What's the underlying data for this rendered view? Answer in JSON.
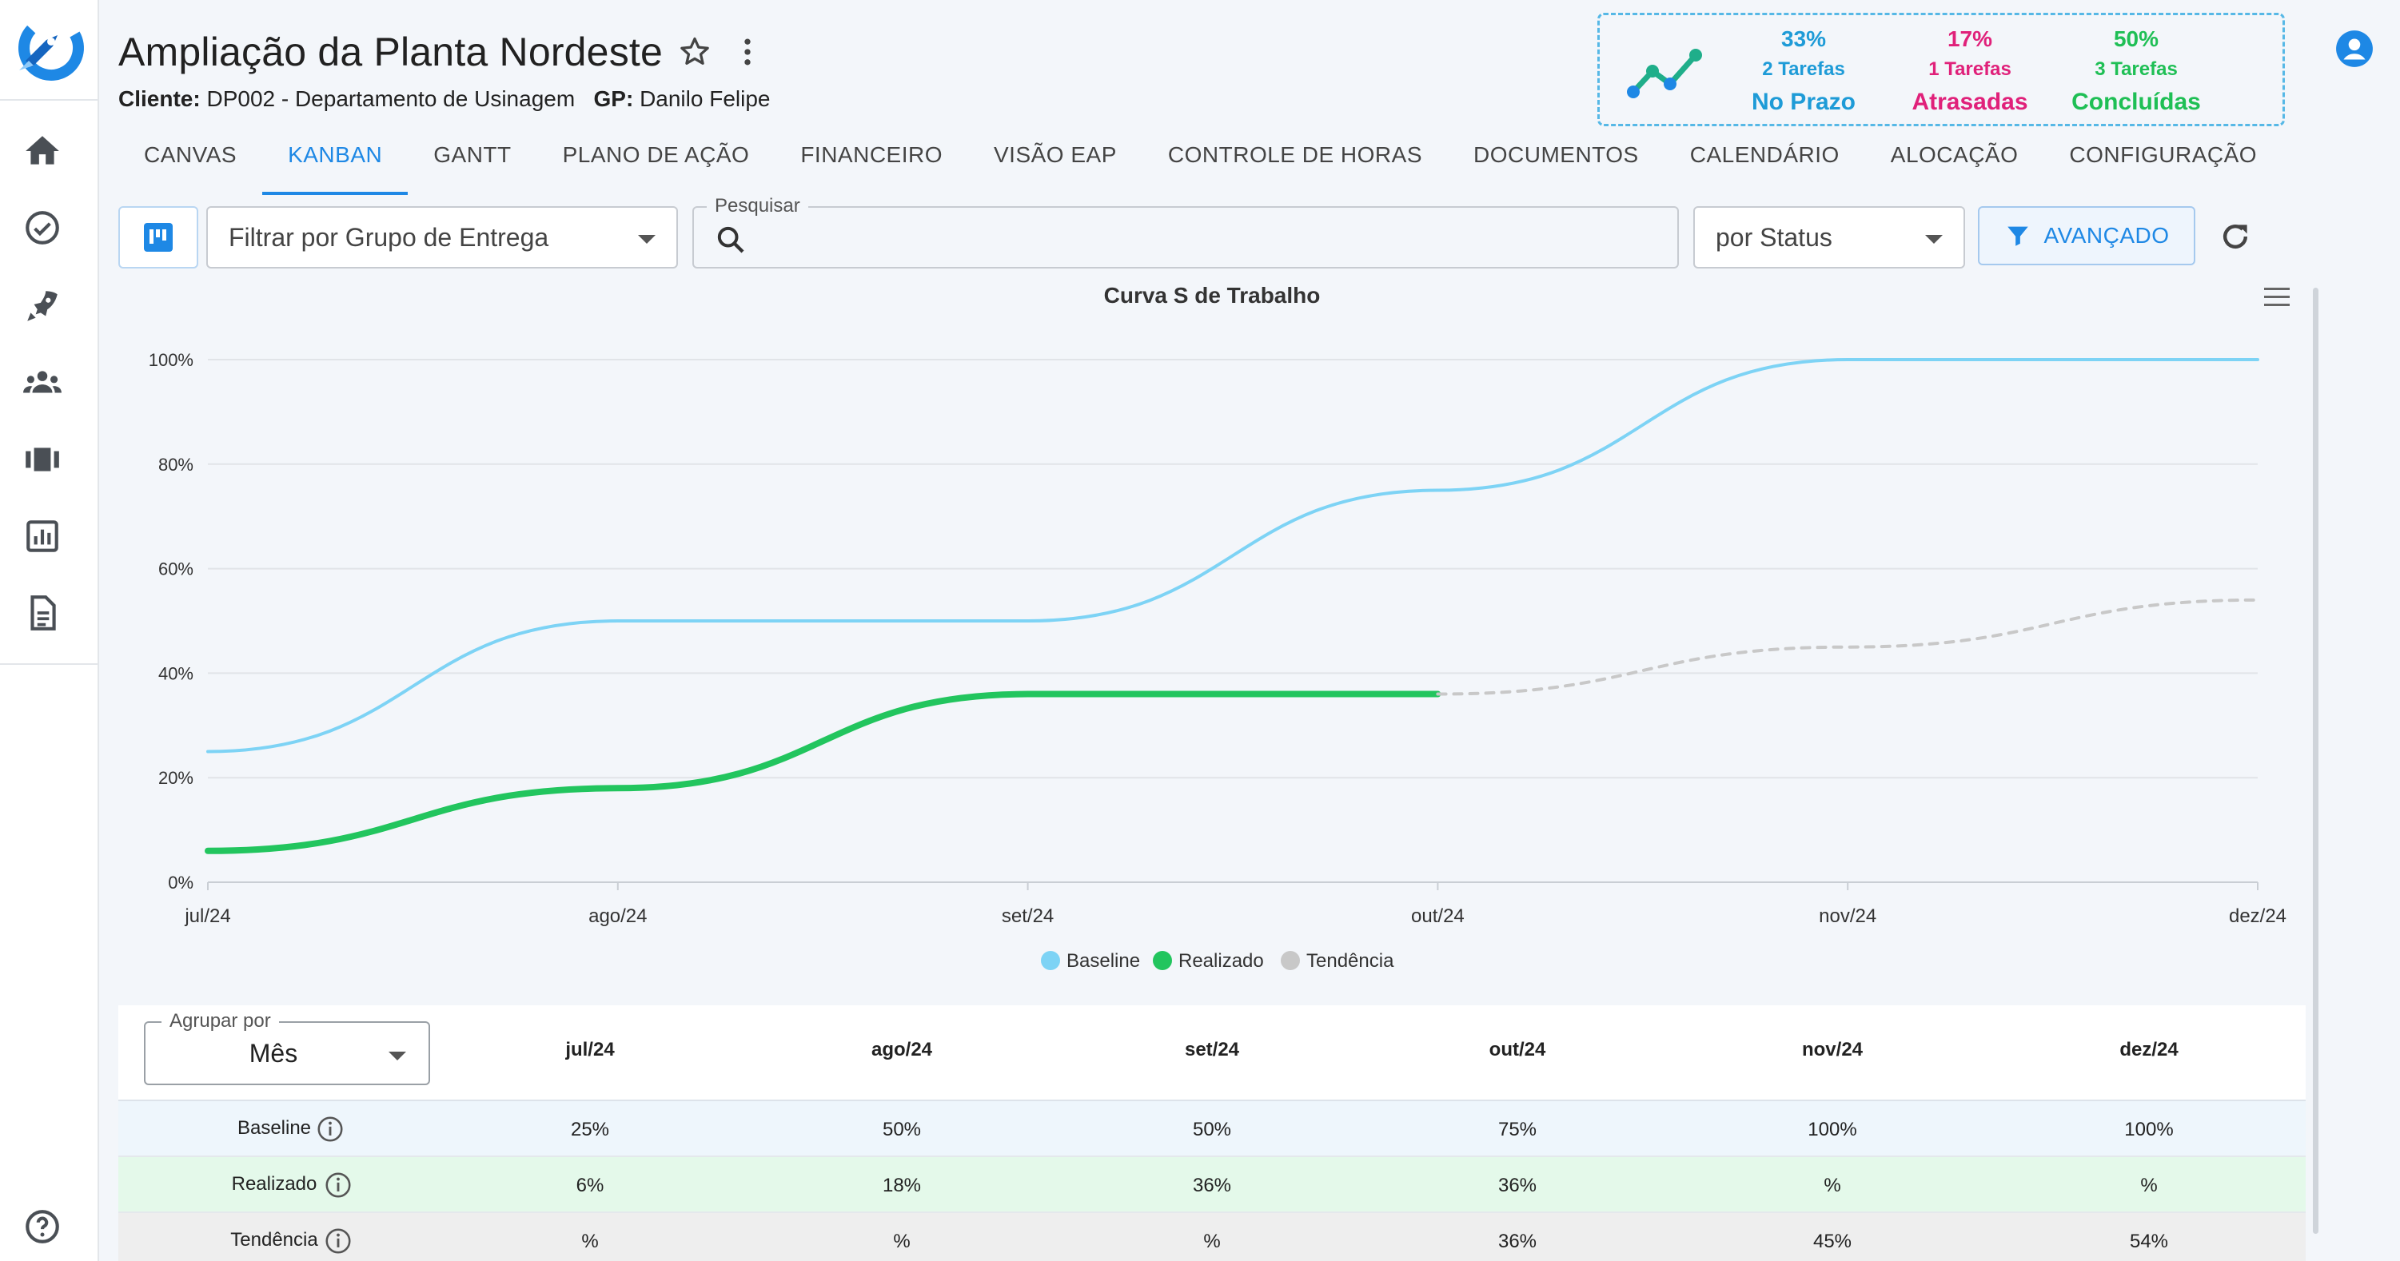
{
  "header": {
    "title": "Ampliação da Planta Nordeste",
    "client_label": "Cliente:",
    "client_value": "DP002 - Departamento de Usinagem",
    "gp_label": "GP:",
    "gp_value": "Danilo Felipe"
  },
  "stats": [
    {
      "pct": "33%",
      "count": "2 Tarefas",
      "label": "No Prazo",
      "color": "#1e9bd7"
    },
    {
      "pct": "17%",
      "count": "1 Tarefas",
      "label": "Atrasadas",
      "color": "#e0217a"
    },
    {
      "pct": "50%",
      "count": "3 Tarefas",
      "label": "Concluídas",
      "color": "#1fbf55"
    }
  ],
  "tabs": [
    "CANVAS",
    "KANBAN",
    "GANTT",
    "PLANO DE AÇÃO",
    "FINANCEIRO",
    "VISÃO EAP",
    "CONTROLE DE HORAS",
    "DOCUMENTOS",
    "CALENDÁRIO",
    "ALOCAÇÃO",
    "CONFIGURAÇÃO"
  ],
  "active_tab": "KANBAN",
  "filters": {
    "delivery_group": "Filtrar por Grupo de Entrega",
    "search_label": "Pesquisar",
    "search_value": "",
    "status": "por Status",
    "advanced": "AVANÇADO"
  },
  "sidebar_icons": [
    "home-icon",
    "check-circle-icon",
    "rocket-icon",
    "groups-icon",
    "carousel-icon",
    "report-icon",
    "document-icon",
    "help-icon"
  ],
  "chart_data": {
    "type": "line",
    "title": "Curva S de Trabalho",
    "categories": [
      "jul/24",
      "ago/24",
      "set/24",
      "out/24",
      "nov/24",
      "dez/24"
    ],
    "y_ticks": [
      "0%",
      "20%",
      "40%",
      "60%",
      "80%",
      "100%"
    ],
    "ylim": [
      0,
      100
    ],
    "grid": true,
    "legend_position": "bottom",
    "series": [
      {
        "name": "Baseline",
        "color": "#7dd3f5",
        "values": [
          25,
          50,
          50,
          75,
          100,
          100
        ],
        "style": "solid"
      },
      {
        "name": "Realizado",
        "color": "#22c55e",
        "values": [
          6,
          18,
          36,
          36,
          null,
          null
        ],
        "style": "solid"
      },
      {
        "name": "Tendência",
        "color": "#c8c8c8",
        "values": [
          null,
          null,
          null,
          36,
          45,
          54
        ],
        "style": "dashed"
      }
    ]
  },
  "table": {
    "group_label": "Agrupar por",
    "group_value": "Mês",
    "columns": [
      "jul/24",
      "ago/24",
      "set/24",
      "out/24",
      "nov/24",
      "dez/24"
    ],
    "rows": [
      {
        "label": "Baseline",
        "values": [
          "25%",
          "50%",
          "50%",
          "75%",
          "100%",
          "100%"
        ],
        "bg": "#eef6fc"
      },
      {
        "label": "Realizado",
        "values": [
          "6%",
          "18%",
          "36%",
          "36%",
          "%",
          "%"
        ],
        "bg": "#e4f9ea"
      },
      {
        "label": "Tendência",
        "values": [
          "%",
          "%",
          "%",
          "36%",
          "45%",
          "54%"
        ],
        "bg": "#eeeeee"
      }
    ]
  }
}
